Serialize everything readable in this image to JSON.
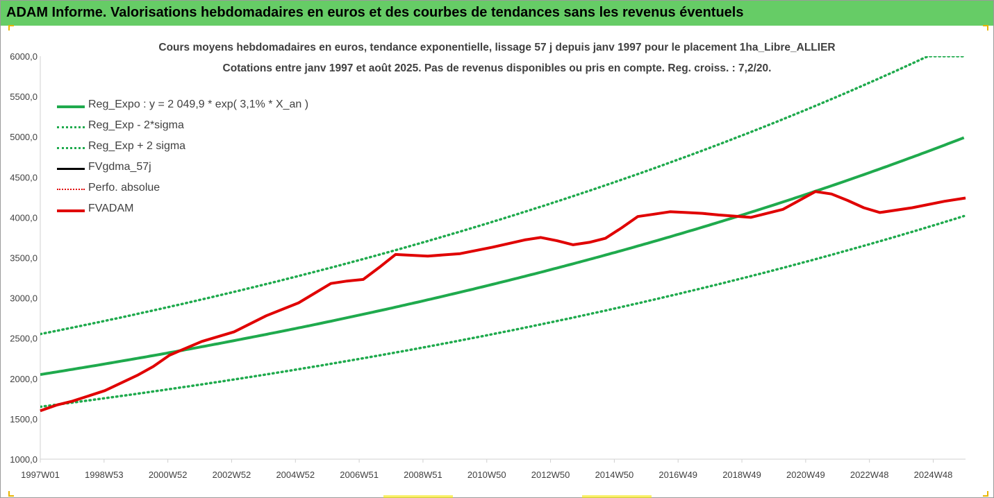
{
  "header": {
    "title": "ADAM Informe. Valorisations hebdomadaires en euros et des courbes de tendances sans les revenus éventuels"
  },
  "chart_data": {
    "type": "line",
    "title": "Cours moyens hebdomadaires en euros, tendance exponentielle, lissage 57 j depuis janv 1997 pour le placement 1ha_Libre_ALLIER",
    "subtitle": "Cotations entre janv 1997 et août 2025.  Pas de revenus disponibles ou pris en compte. Reg. croiss. : 7,2/20.",
    "xlabel": "",
    "ylabel": "",
    "ylim": [
      1000,
      6000
    ],
    "xlim": [
      1997.0,
      2025.65
    ],
    "y_ticks": [
      "1000,0",
      "1500,0",
      "2000,0",
      "2500,0",
      "3000,0",
      "3500,0",
      "4000,0",
      "4500,0",
      "5000,0",
      "5500,0",
      "6000,0"
    ],
    "x_ticks": [
      "1997W01",
      "1998W53",
      "2000W52",
      "2002W52",
      "2004W52",
      "2006W51",
      "2008W51",
      "2010W50",
      "2012W50",
      "2014W50",
      "2016W49",
      "2018W49",
      "2020W49",
      "2022W48",
      "2024W48"
    ],
    "grid": false,
    "legend_position": "top-left",
    "colors": {
      "reg": "#1faa4d",
      "fv57": "#000000",
      "perfo": "#e00000",
      "fvadam": "#e00000"
    },
    "series": [
      {
        "name": "Reg_Expo : y = 2 049,9 * exp( 3,1% *  X_an )",
        "style": "solid-green"
      },
      {
        "name": "Reg_Exp - 2*sigma",
        "style": "dotted-green"
      },
      {
        "name": "Reg_Exp + 2 sigma",
        "style": "dotted-green"
      },
      {
        "name": "FVgdma_57j",
        "style": "solid-black"
      },
      {
        "name": "Perfo. absolue",
        "style": "dotted-red"
      },
      {
        "name": "FVADAM",
        "style": "solid-red"
      }
    ],
    "regression": {
      "a": 2049.9,
      "b": 0.0311,
      "minus_2sigma_factor": 0.805,
      "plus_2sigma_factor": 1.245
    },
    "x": [
      1997.0,
      1997.5,
      1998.0,
      1999.0,
      2000.0,
      2000.5,
      2001.0,
      2002.0,
      2003.0,
      2004.0,
      2005.0,
      2005.5,
      2006.0,
      2006.5,
      2007.0,
      2007.5,
      2008.0,
      2009.0,
      2010.0,
      2011.0,
      2012.0,
      2012.5,
      2013.0,
      2013.5,
      2014.0,
      2014.5,
      2015.0,
      2015.5,
      2016.0,
      2016.5,
      2017.0,
      2017.5,
      2018.0,
      2019.0,
      2020.0,
      2020.5,
      2021.0,
      2021.5,
      2022.0,
      2022.5,
      2023.0,
      2024.0,
      2025.0,
      2025.65
    ],
    "fvadam": [
      1600,
      1670,
      1720,
      1850,
      2040,
      2150,
      2290,
      2460,
      2580,
      2780,
      2940,
      3060,
      3180,
      3210,
      3230,
      3380,
      3540,
      3520,
      3550,
      3630,
      3720,
      3750,
      3710,
      3660,
      3690,
      3740,
      3870,
      4010,
      4040,
      4070,
      4060,
      4050,
      4030,
      4000,
      4100,
      4210,
      4320,
      4290,
      4210,
      4120,
      4060,
      4120,
      4200,
      4240
    ]
  }
}
